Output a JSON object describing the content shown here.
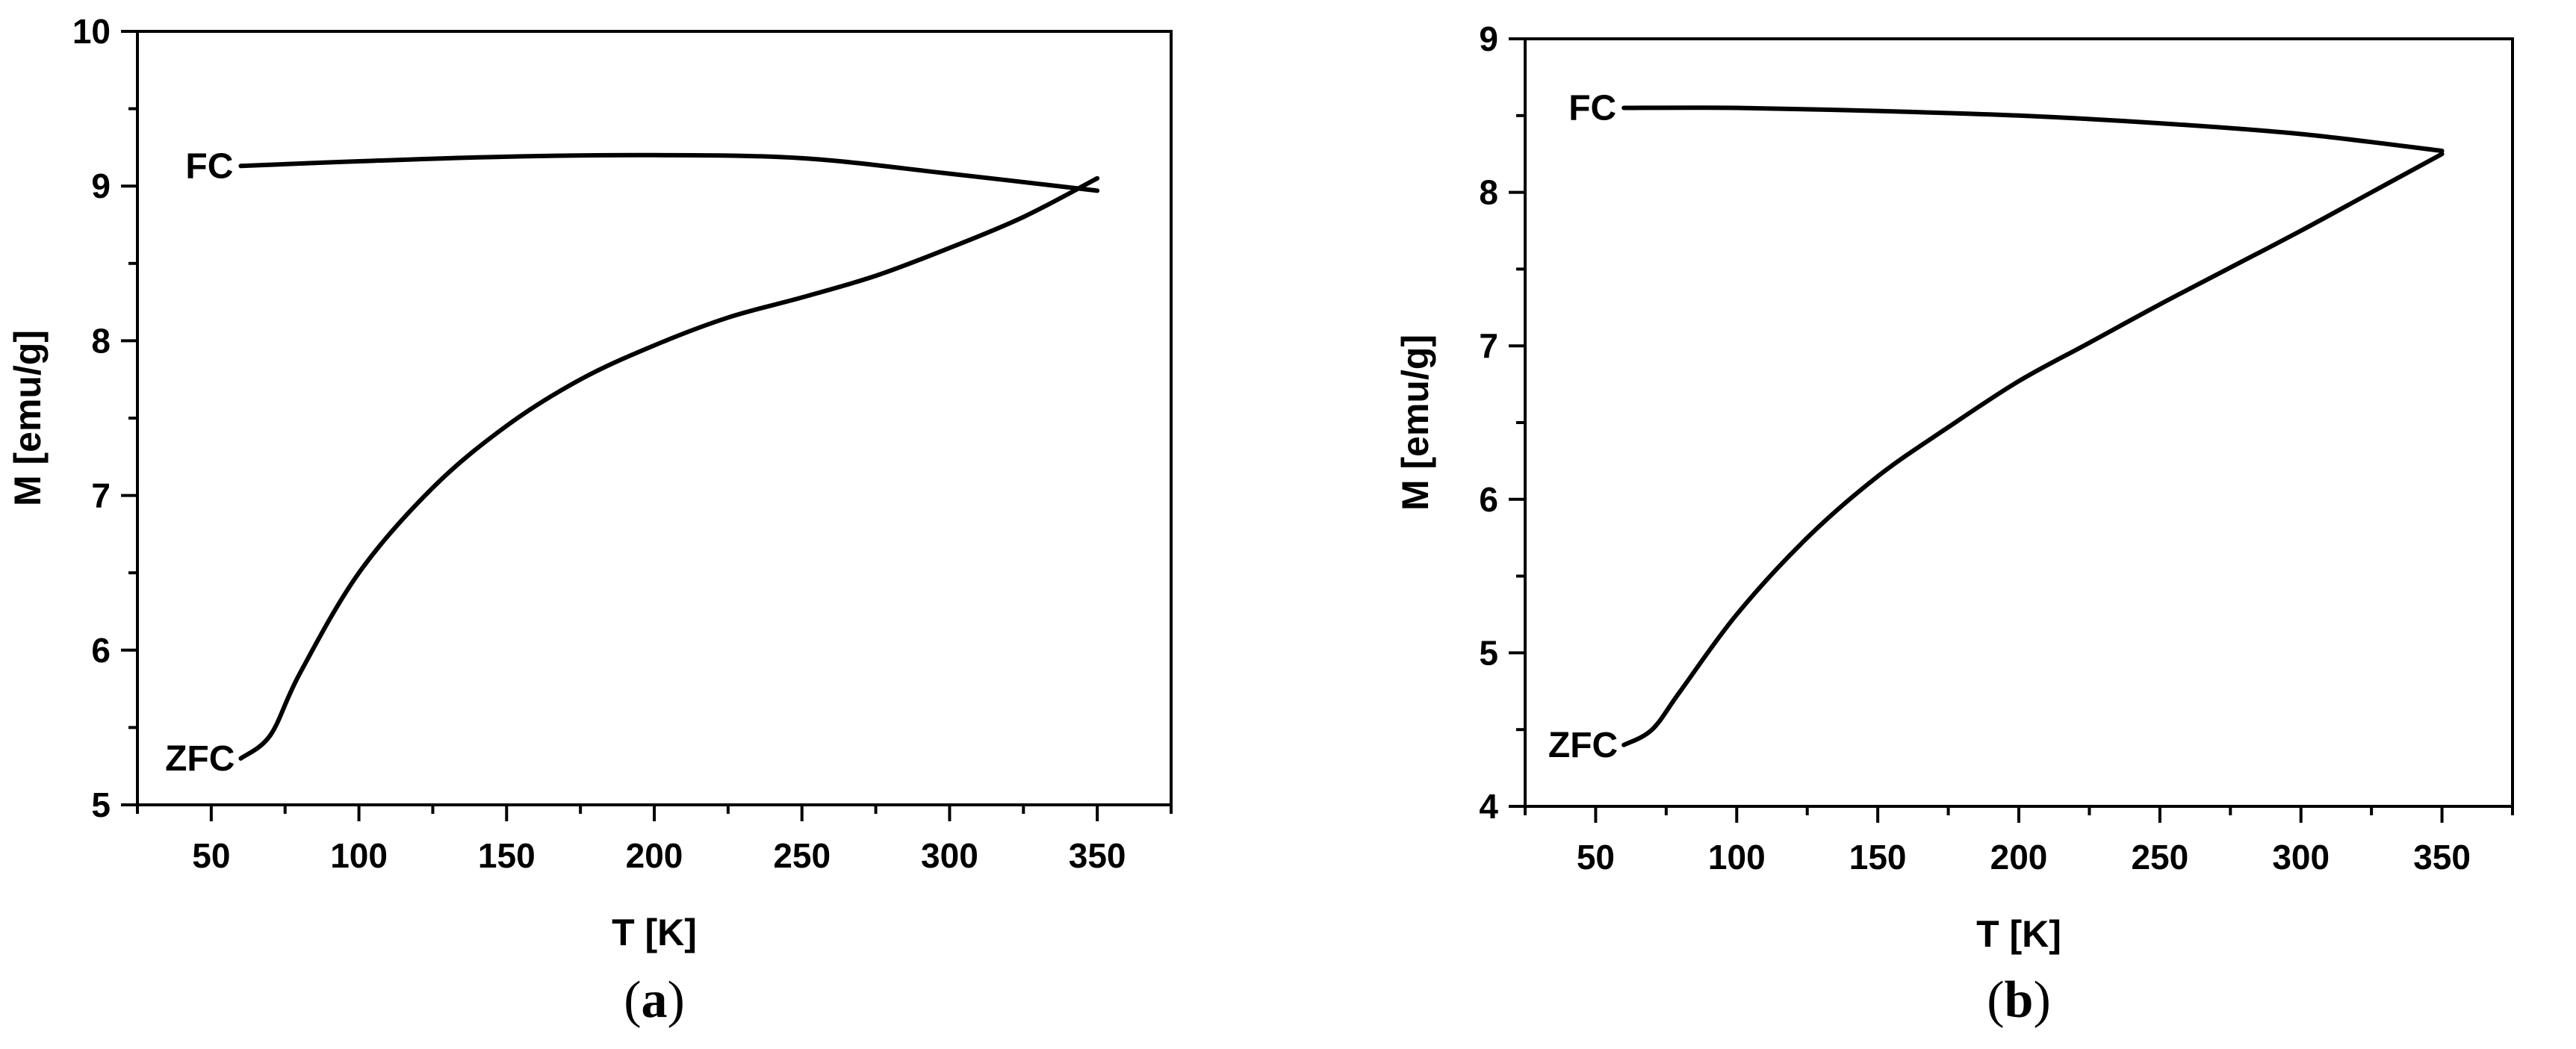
{
  "chart_data": [
    {
      "type": "line",
      "panel_label": "a",
      "xlabel": "T [K]",
      "ylabel": "M [emu/g]",
      "xlim": [
        25,
        375
      ],
      "ylim": [
        5,
        10
      ],
      "xticks": [
        50,
        100,
        150,
        200,
        250,
        300,
        350
      ],
      "yticks": [
        5,
        6,
        7,
        8,
        9,
        10
      ],
      "legend": "none",
      "grid": false,
      "series": [
        {
          "name": "FC",
          "x": [
            60,
            100,
            150,
            200,
            250,
            300,
            350
          ],
          "y": [
            9.13,
            9.16,
            9.19,
            9.2,
            9.18,
            9.08,
            8.97
          ]
        },
        {
          "name": "ZFC",
          "x": [
            60,
            70,
            80,
            100,
            125,
            150,
            175,
            200,
            225,
            250,
            275,
            300,
            325,
            350
          ],
          "y": [
            5.3,
            5.45,
            5.85,
            6.5,
            7.05,
            7.45,
            7.75,
            7.97,
            8.15,
            8.28,
            8.42,
            8.6,
            8.8,
            9.05
          ]
        }
      ]
    },
    {
      "type": "line",
      "panel_label": "b",
      "xlabel": "T [K]",
      "ylabel": "M [emu/g]",
      "xlim": [
        25,
        375
      ],
      "ylim": [
        4,
        9
      ],
      "xticks": [
        50,
        100,
        150,
        200,
        250,
        300,
        350
      ],
      "yticks": [
        4,
        5,
        6,
        7,
        8,
        9
      ],
      "legend": "none",
      "grid": false,
      "series": [
        {
          "name": "FC",
          "x": [
            60,
            100,
            150,
            200,
            250,
            300,
            350
          ],
          "y": [
            8.55,
            8.55,
            8.53,
            8.5,
            8.45,
            8.38,
            8.27
          ]
        },
        {
          "name": "ZFC",
          "x": [
            60,
            70,
            80,
            100,
            125,
            150,
            175,
            200,
            225,
            250,
            275,
            300,
            325,
            350
          ],
          "y": [
            4.4,
            4.5,
            4.75,
            5.25,
            5.75,
            6.15,
            6.47,
            6.77,
            7.02,
            7.27,
            7.51,
            7.75,
            8.0,
            8.25
          ]
        }
      ]
    }
  ]
}
